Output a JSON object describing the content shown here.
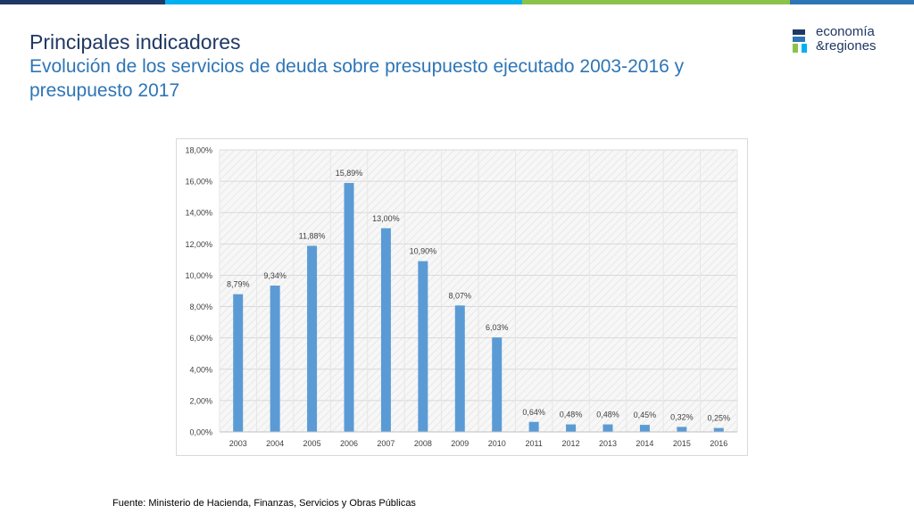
{
  "header": {
    "title": "Principales indicadores",
    "subtitle": "Evolución de los servicios de deuda sobre presupuesto ejecutado 2003-2016 y presupuesto 2017"
  },
  "logo": {
    "line1": "economía",
    "line2": "&regiones"
  },
  "colors": {
    "bar": "#5b9bd5",
    "title": "#1f3864",
    "subtitle": "#2e75b6",
    "accent_cyan": "#00b0f0",
    "accent_green": "#8bc34a"
  },
  "chart_data": {
    "type": "bar",
    "title": "",
    "xlabel": "",
    "ylabel": "",
    "categories": [
      "2003",
      "2004",
      "2005",
      "2006",
      "2007",
      "2008",
      "2009",
      "2010",
      "2011",
      "2012",
      "2013",
      "2014",
      "2015",
      "2016"
    ],
    "values": [
      8.79,
      9.34,
      11.88,
      15.89,
      13.0,
      10.9,
      8.07,
      6.03,
      0.64,
      0.48,
      0.48,
      0.45,
      0.32,
      0.25
    ],
    "value_labels": [
      "8,79%",
      "9,34%",
      "11,88%",
      "15,89%",
      "13,00%",
      "10,90%",
      "8,07%",
      "6,03%",
      "0,64%",
      "0,48%",
      "0,48%",
      "0,45%",
      "0,32%",
      "0,25%"
    ],
    "ylim": [
      0,
      18
    ],
    "yticks": [
      0,
      2,
      4,
      6,
      8,
      10,
      12,
      14,
      16,
      18
    ],
    "ytick_labels": [
      "0,00%",
      "2,00%",
      "4,00%",
      "6,00%",
      "8,00%",
      "10,00%",
      "12,00%",
      "14,00%",
      "16,00%",
      "18,00%"
    ],
    "grid": true
  },
  "footer": {
    "source": "Fuente: Ministerio de Hacienda, Finanzas, Servicios y Obras Públicas"
  }
}
